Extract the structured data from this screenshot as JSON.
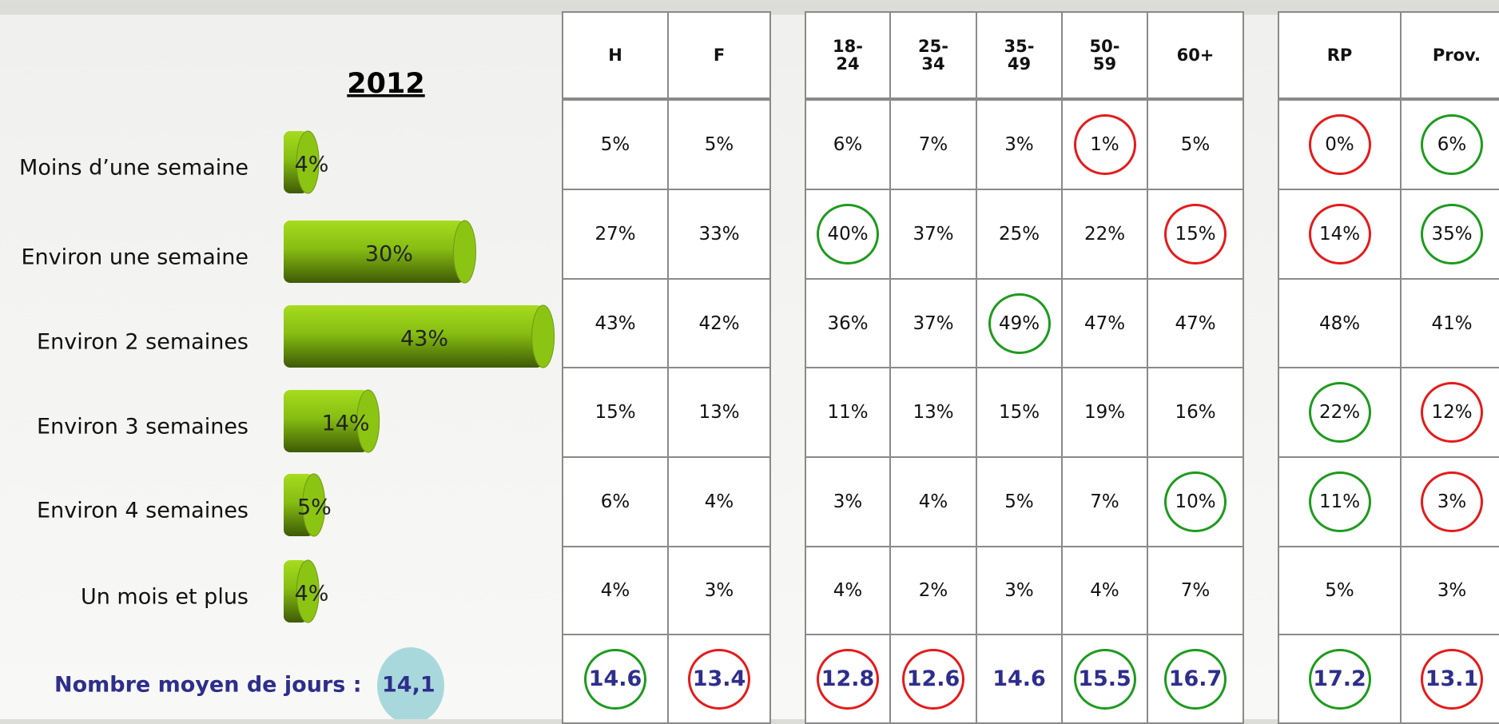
{
  "chart_data": {
    "type": "bar",
    "title": "2012",
    "categories": [
      "Moins d’une semaine",
      "Environ une semaine",
      "Environ 2 semaines",
      "Environ 3 semaines",
      "Environ 4 semaines",
      "Un mois et plus"
    ],
    "values": [
      4,
      30,
      43,
      14,
      5,
      4
    ],
    "value_labels": [
      "4%",
      "30%",
      "43%",
      "14%",
      "5%",
      "4%"
    ],
    "color": "#8cc414"
  },
  "annotation": {
    "label": "Nombre moyen de jours :",
    "value": "14,1"
  },
  "table": {
    "groups": [
      [
        "H",
        "F"
      ],
      [
        "18-24",
        "25-34",
        "35-49",
        "50-59",
        "60+"
      ],
      [
        "RP",
        "Prov."
      ]
    ],
    "rows": [
      [
        [
          "5%",
          "5%"
        ],
        [
          "6%",
          "7%",
          "3%",
          "1%",
          "5%"
        ],
        [
          "0%",
          "6%"
        ]
      ],
      [
        [
          "27%",
          "33%"
        ],
        [
          "40%",
          "37%",
          "25%",
          "22%",
          "15%"
        ],
        [
          "14%",
          "35%"
        ]
      ],
      [
        [
          "43%",
          "42%"
        ],
        [
          "36%",
          "37%",
          "49%",
          "47%",
          "47%"
        ],
        [
          "48%",
          "41%"
        ]
      ],
      [
        [
          "15%",
          "13%"
        ],
        [
          "11%",
          "13%",
          "15%",
          "19%",
          "16%"
        ],
        [
          "22%",
          "12%"
        ]
      ],
      [
        [
          "6%",
          "4%"
        ],
        [
          "3%",
          "4%",
          "5%",
          "7%",
          "10%"
        ],
        [
          "11%",
          "3%"
        ]
      ],
      [
        [
          "4%",
          "3%"
        ],
        [
          "4%",
          "2%",
          "3%",
          "4%",
          "7%"
        ],
        [
          "5%",
          "3%"
        ]
      ],
      [
        [
          "14.6",
          "13.4"
        ],
        [
          "12.8",
          "12.6",
          "14.6",
          "15.5",
          "16.7"
        ],
        [
          "17.2",
          "13.1"
        ]
      ]
    ],
    "highlights": [
      [
        [
          null,
          null
        ],
        [
          null,
          null,
          null,
          "red",
          null
        ],
        [
          "red",
          "green"
        ]
      ],
      [
        [
          null,
          null
        ],
        [
          "green",
          null,
          null,
          null,
          "red"
        ],
        [
          "red",
          "green"
        ]
      ],
      [
        [
          null,
          null
        ],
        [
          null,
          null,
          "green",
          null,
          null
        ],
        [
          null,
          null
        ]
      ],
      [
        [
          null,
          null
        ],
        [
          null,
          null,
          null,
          null,
          null
        ],
        [
          "green",
          "red"
        ]
      ],
      [
        [
          null,
          null
        ],
        [
          null,
          null,
          null,
          null,
          "green"
        ],
        [
          "green",
          "red"
        ]
      ],
      [
        [
          null,
          null
        ],
        [
          null,
          null,
          null,
          null,
          null
        ],
        [
          null,
          null
        ]
      ],
      [
        [
          "green",
          "red"
        ],
        [
          "red",
          "red",
          null,
          "green",
          "green"
        ],
        [
          "green",
          "red"
        ]
      ]
    ],
    "highlight_colors": {
      "green": "#1e9a1e",
      "red": "#e41b1b"
    }
  }
}
